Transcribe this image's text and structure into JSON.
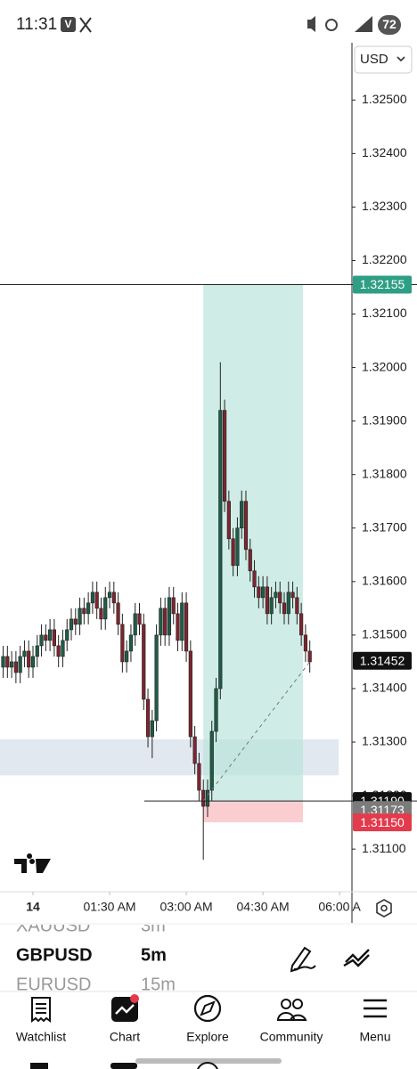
{
  "status_bar": {
    "time": "11:31",
    "battery": "72"
  },
  "currency": "USD",
  "chart_data": {
    "type": "candlestick",
    "x": [
      -35,
      -30,
      -25,
      -20,
      -15,
      -10,
      -5,
      0,
      5,
      10,
      15,
      20,
      25,
      30,
      35,
      40,
      45,
      50,
      55,
      60,
      65,
      70,
      75,
      80,
      85,
      90,
      95,
      100,
      105,
      110,
      115,
      120,
      125,
      130,
      135,
      140,
      145,
      150,
      155,
      160,
      165,
      170,
      175,
      180,
      185,
      190,
      195,
      200,
      205,
      210,
      215,
      220,
      225,
      230,
      235,
      240,
      245,
      250,
      255,
      260,
      265,
      270,
      275,
      280,
      285,
      290,
      295,
      300,
      305,
      310,
      315,
      320,
      325
    ],
    "open": [
      1.3144,
      1.3146,
      1.3144,
      1.3145,
      1.3143,
      1.3146,
      1.3147,
      1.3144,
      1.3146,
      1.3148,
      1.315,
      1.3149,
      1.3151,
      1.3148,
      1.3146,
      1.3149,
      1.3151,
      1.3153,
      1.3152,
      1.3155,
      1.3154,
      1.3156,
      1.3158,
      1.3155,
      1.3153,
      1.3157,
      1.3158,
      1.3156,
      1.3152,
      1.3145,
      1.3147,
      1.315,
      1.3154,
      1.3152,
      1.3138,
      1.3131,
      1.3134,
      1.315,
      1.3155,
      1.315,
      1.3157,
      1.3154,
      1.3149,
      1.3156,
      1.3147,
      1.3131,
      1.3126,
      1.3121,
      1.3118,
      1.3121,
      1.3132,
      1.314,
      1.3192,
      1.3175,
      1.3168,
      1.3163,
      1.317,
      1.3175,
      1.3166,
      1.3162,
      1.3159,
      1.3157,
      1.3159,
      1.3154,
      1.3157,
      1.3158,
      1.3156,
      1.3154,
      1.3158,
      1.3157,
      1.3154,
      1.315,
      1.3147
    ],
    "high": [
      1.3148,
      1.3148,
      1.3147,
      1.3147,
      1.3148,
      1.3149,
      1.3149,
      1.3148,
      1.315,
      1.3152,
      1.3152,
      1.3153,
      1.3153,
      1.315,
      1.3151,
      1.3153,
      1.3155,
      1.3155,
      1.3157,
      1.3157,
      1.3158,
      1.316,
      1.316,
      1.3157,
      1.3159,
      1.316,
      1.316,
      1.3158,
      1.3154,
      1.3149,
      1.3152,
      1.3156,
      1.3156,
      1.3154,
      1.314,
      1.3136,
      1.3152,
      1.3157,
      1.3157,
      1.3159,
      1.3159,
      1.3156,
      1.3158,
      1.3158,
      1.3149,
      1.3133,
      1.3128,
      1.3123,
      1.3123,
      1.3134,
      1.3142,
      1.3201,
      1.3194,
      1.3177,
      1.317,
      1.3172,
      1.3177,
      1.3177,
      1.3168,
      1.3164,
      1.3161,
      1.3161,
      1.3161,
      1.3159,
      1.316,
      1.316,
      1.3158,
      1.316,
      1.316,
      1.3159,
      1.3156,
      1.3152,
      1.3149
    ],
    "low": [
      1.3142,
      1.3142,
      1.3142,
      1.3141,
      1.3141,
      1.3144,
      1.3142,
      1.3142,
      1.3144,
      1.3146,
      1.3147,
      1.3147,
      1.3146,
      1.3144,
      1.3144,
      1.3147,
      1.3149,
      1.315,
      1.315,
      1.3152,
      1.3152,
      1.3154,
      1.3153,
      1.3151,
      1.3151,
      1.3155,
      1.3154,
      1.315,
      1.3143,
      1.3143,
      1.3145,
      1.3148,
      1.315,
      1.3136,
      1.3129,
      1.3127,
      1.3132,
      1.3148,
      1.3148,
      1.3148,
      1.3152,
      1.3147,
      1.3147,
      1.3145,
      1.3129,
      1.3124,
      1.3119,
      1.3108,
      1.3116,
      1.3119,
      1.313,
      1.3138,
      1.3173,
      1.3166,
      1.3161,
      1.3161,
      1.3168,
      1.3164,
      1.316,
      1.3157,
      1.3155,
      1.3155,
      1.3152,
      1.3152,
      1.3155,
      1.3154,
      1.3152,
      1.3152,
      1.3155,
      1.3152,
      1.3148,
      1.3145,
      1.3143
    ],
    "close": [
      1.3146,
      1.3144,
      1.3145,
      1.3143,
      1.3146,
      1.3147,
      1.3144,
      1.3146,
      1.3148,
      1.315,
      1.3149,
      1.3151,
      1.3148,
      1.3146,
      1.3149,
      1.3151,
      1.3153,
      1.3152,
      1.3155,
      1.3154,
      1.3156,
      1.3158,
      1.3155,
      1.3153,
      1.3157,
      1.3158,
      1.3156,
      1.3152,
      1.3145,
      1.3147,
      1.315,
      1.3154,
      1.3152,
      1.3138,
      1.3131,
      1.3134,
      1.315,
      1.3155,
      1.315,
      1.3157,
      1.3154,
      1.3149,
      1.3156,
      1.3147,
      1.3131,
      1.3126,
      1.3121,
      1.3118,
      1.3121,
      1.3132,
      1.314,
      1.3192,
      1.3175,
      1.3168,
      1.3163,
      1.317,
      1.3175,
      1.3166,
      1.3162,
      1.3159,
      1.3157,
      1.3159,
      1.3154,
      1.3157,
      1.3158,
      1.3156,
      1.3154,
      1.3158,
      1.3157,
      1.3154,
      1.315,
      1.3147,
      1.3145
    ],
    "up_color": "#1f5c48",
    "down_color": "#7d2530",
    "xlim": [
      -38.7,
      374.5
    ],
    "ylim": [
      1.31022,
      1.32607
    ],
    "xticks": [
      {
        "value": 0,
        "label": "14"
      },
      {
        "value": 90,
        "label": "01:30 AM"
      },
      {
        "value": 180,
        "label": "03:00 AM"
      },
      {
        "value": 270,
        "label": "04:30 AM"
      },
      {
        "value": 360,
        "label": "06:00 A"
      }
    ],
    "yticks": [
      {
        "value": 1.325,
        "label": "1.32500"
      },
      {
        "value": 1.324,
        "label": "1.32400"
      },
      {
        "value": 1.323,
        "label": "1.32300"
      },
      {
        "value": 1.322,
        "label": "1.32200"
      },
      {
        "value": 1.321,
        "label": "1.32100"
      },
      {
        "value": 1.32,
        "label": "1.32000"
      },
      {
        "value": 1.319,
        "label": "1.31900"
      },
      {
        "value": 1.318,
        "label": "1.31800"
      },
      {
        "value": 1.317,
        "label": "1.31700"
      },
      {
        "value": 1.316,
        "label": "1.31600"
      },
      {
        "value": 1.315,
        "label": "1.31500"
      },
      {
        "value": 1.314,
        "label": "1.31400"
      },
      {
        "value": 1.313,
        "label": "1.31300"
      },
      {
        "value": 1.312,
        "label": "1.31200"
      },
      {
        "value": 1.311,
        "label": "1.31100"
      }
    ],
    "price_tags": [
      {
        "value": 1.32155,
        "label": "1.32155",
        "color": "#2e9e84"
      },
      {
        "value": 1.31452,
        "label": "1.31452",
        "color": "#111111"
      },
      {
        "value": 1.3119,
        "label": "1.31190",
        "color": "#111111"
      },
      {
        "value": 1.31173,
        "label": "1.31173",
        "color": "#7b7b7b"
      },
      {
        "value": 1.3115,
        "label": "1.31150",
        "color": "#e33a4c"
      }
    ],
    "position": {
      "entry": 1.3119,
      "target": 1.32155,
      "stop": 1.3115,
      "x": [
        200,
        317
      ],
      "target_color": "#b5e3d8",
      "stop_color": "#f9c9cc"
    },
    "zone": {
      "low": 1.31238,
      "high": 1.31305,
      "x": [
        -38.7,
        359
      ],
      "color": "#dfe6ee"
    }
  },
  "symbols": [
    {
      "name": "XAUUSD",
      "interval": "3m"
    },
    {
      "name": "GBPUSD",
      "interval": "5m"
    },
    {
      "name": "EURUSD",
      "interval": "15m"
    }
  ],
  "nav": [
    "Watchlist",
    "Chart",
    "Explore",
    "Community",
    "Menu"
  ]
}
